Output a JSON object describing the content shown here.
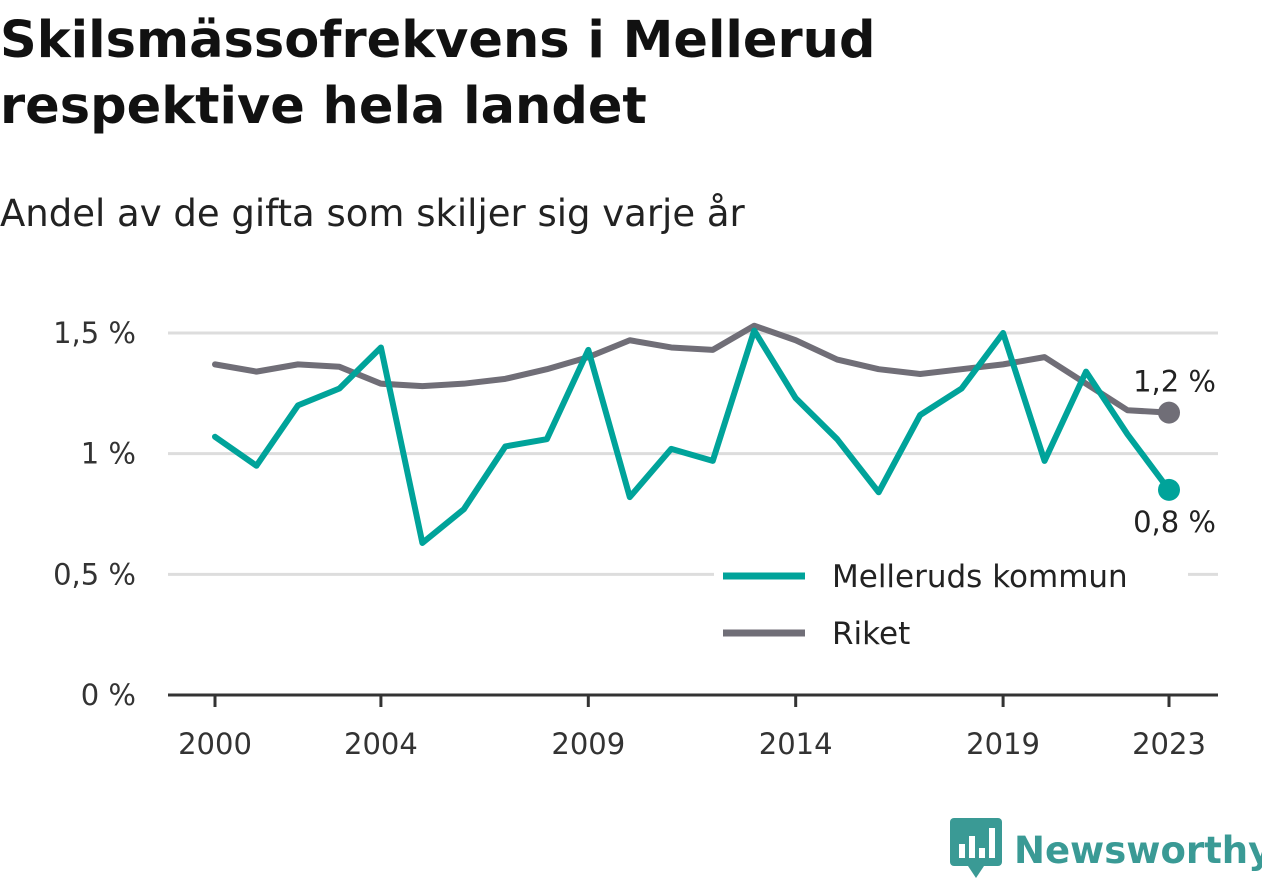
{
  "title": "Skilsmässofrekvens i Mellerud respektive hela landet",
  "subtitle": "Andel av de gifta som skiljer sig varje år",
  "brand": {
    "name": "Newsworthy",
    "icon": "bar-chart-bubble-icon",
    "color": "#3a9a95"
  },
  "colors": {
    "mellerud": "#00a39a",
    "riket": "#706e77",
    "grid": "#dddddd",
    "axis": "#333333"
  },
  "chart_data": {
    "type": "line",
    "x": [
      2000,
      2001,
      2002,
      2003,
      2004,
      2005,
      2006,
      2007,
      2008,
      2009,
      2010,
      2011,
      2012,
      2013,
      2014,
      2015,
      2016,
      2017,
      2018,
      2019,
      2020,
      2021,
      2022,
      2023
    ],
    "xticks": [
      {
        "value": 2000,
        "label": "2000"
      },
      {
        "value": 2004,
        "label": "2004"
      },
      {
        "value": 2009,
        "label": "2009"
      },
      {
        "value": 2014,
        "label": "2014"
      },
      {
        "value": 2019,
        "label": "2019"
      },
      {
        "value": 2023,
        "label": "2023"
      }
    ],
    "yticks": [
      {
        "value": 0,
        "label": "0 %"
      },
      {
        "value": 0.5,
        "label": "0,5 %"
      },
      {
        "value": 1,
        "label": "1 %"
      },
      {
        "value": 1.5,
        "label": "1,5 %"
      }
    ],
    "ylim": [
      0,
      1.5
    ],
    "grid": true,
    "legend_position": "bottom-right",
    "series": [
      {
        "name": "Melleruds kommun",
        "color": "#00a39a",
        "values": [
          1.07,
          0.95,
          1.2,
          1.27,
          1.44,
          0.63,
          0.77,
          1.03,
          1.06,
          1.43,
          0.82,
          1.02,
          0.97,
          1.51,
          1.23,
          1.06,
          0.84,
          1.16,
          1.27,
          1.5,
          0.97,
          1.34,
          1.08,
          0.85
        ],
        "end_label": "0,8 %"
      },
      {
        "name": "Riket",
        "color": "#706e77",
        "values": [
          1.37,
          1.34,
          1.37,
          1.36,
          1.29,
          1.28,
          1.29,
          1.31,
          1.35,
          1.4,
          1.47,
          1.44,
          1.43,
          1.53,
          1.47,
          1.39,
          1.35,
          1.33,
          1.35,
          1.37,
          1.4,
          1.29,
          1.18,
          1.17
        ],
        "end_label": "1,2 %"
      }
    ]
  }
}
